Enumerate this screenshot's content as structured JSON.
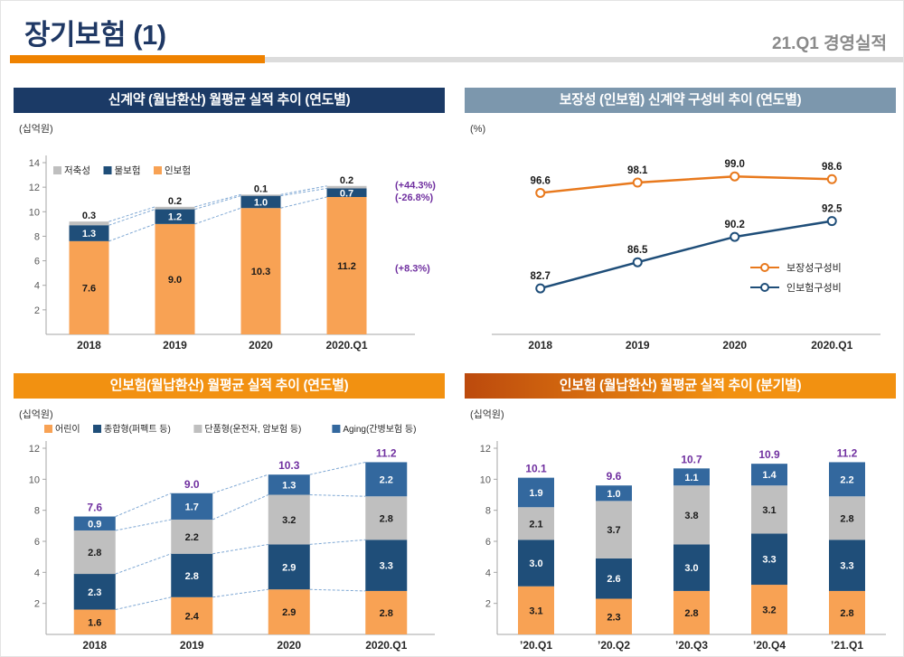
{
  "page": {
    "title": "장기보험 (1)",
    "subtitle": "21.Q1 경영실적"
  },
  "colors": {
    "orange": "#F8A254",
    "navy": "#1F4E79",
    "gray": "#BFBFBF",
    "aging": "#33689E",
    "purple": "#7030A0",
    "line_orange": "#E8791D",
    "line_navy": "#1F4E79"
  },
  "chart_data": [
    {
      "id": "new-contracts-monthly-avg-yearly",
      "type": "bar",
      "stacked": true,
      "title": "신계약 (월납환산) 월평균 실적 추이 (연도별)",
      "unit": "(십억원)",
      "categories": [
        "2018",
        "2019",
        "2020",
        "2020.Q1"
      ],
      "series": [
        {
          "name": "인보험",
          "color": "orange",
          "label_color": "dark",
          "values": [
            7.6,
            9.0,
            10.3,
            11.2
          ]
        },
        {
          "name": "물보험",
          "color": "navy",
          "label_color": "white",
          "values": [
            1.3,
            1.2,
            1.0,
            0.7
          ]
        },
        {
          "name": "저축성",
          "color": "gray",
          "label_color": "dark",
          "values": [
            0.3,
            0.2,
            0.1,
            0.2
          ]
        }
      ],
      "legend": [
        {
          "label": "저축성",
          "color": "gray"
        },
        {
          "label": "물보험",
          "color": "navy"
        },
        {
          "label": "인보험",
          "color": "orange"
        }
      ],
      "ylim": [
        0,
        14
      ],
      "yticks": [
        2,
        4,
        6,
        8,
        10,
        12,
        14
      ],
      "connectors": true,
      "annotations": [
        {
          "text": "(+44.3%)",
          "y": 12.2
        },
        {
          "text": "(-26.8%)",
          "y": 11.2
        },
        {
          "text": "(+8.3%)",
          "y": 5.4
        }
      ]
    },
    {
      "id": "protection-composition-yearly",
      "type": "line",
      "title": "보장성 (인보험) 신계약 구성비 추이 (연도별)",
      "unit": "(%)",
      "categories": [
        "2018",
        "2019",
        "2020",
        "2020.Q1"
      ],
      "series": [
        {
          "name": "보장성구성비",
          "color": "line_orange",
          "values": [
            96.6,
            98.1,
            99.0,
            98.6
          ]
        },
        {
          "name": "인보험구성비",
          "color": "line_navy",
          "values": [
            82.7,
            86.5,
            90.2,
            92.5
          ]
        }
      ],
      "ylim": [
        76,
        101
      ],
      "legend_position": "middle-right"
    },
    {
      "id": "inbohum-monthly-avg-yearly",
      "type": "bar",
      "stacked": true,
      "title": "인보험(월납환산) 월평균 실적 추이 (연도별)",
      "unit": "(십억원)",
      "categories": [
        "2018",
        "2019",
        "2020",
        "2020.Q1"
      ],
      "series": [
        {
          "name": "어린이",
          "color": "orange",
          "label_color": "dark",
          "values": [
            1.6,
            2.4,
            2.9,
            2.8
          ]
        },
        {
          "name": "종합형(퍼펙트 등)",
          "color": "navy",
          "label_color": "white",
          "values": [
            2.3,
            2.8,
            2.9,
            3.3
          ]
        },
        {
          "name": "단품형(운전자, 암보험 등)",
          "color": "gray",
          "label_color": "dark",
          "values": [
            2.8,
            2.2,
            3.2,
            2.8
          ]
        },
        {
          "name": "Aging(간병보험 등)",
          "color": "aging",
          "label_color": "white",
          "values": [
            0.9,
            1.7,
            1.3,
            2.2
          ]
        }
      ],
      "legend": [
        {
          "label": "어린이",
          "color": "orange"
        },
        {
          "label": "종합형(퍼펙트 등)",
          "color": "navy"
        },
        {
          "label": "단품형(운전자, 암보험 등)",
          "color": "gray"
        },
        {
          "label": "Aging(간병보험 등)",
          "color": "aging"
        }
      ],
      "ylim": [
        0,
        12
      ],
      "yticks": [
        2,
        4,
        6,
        8,
        10,
        12
      ],
      "connectors": true,
      "totals": [
        7.6,
        9.0,
        10.3,
        11.2
      ]
    },
    {
      "id": "inbohum-monthly-avg-quarterly",
      "type": "bar",
      "stacked": true,
      "title": "인보험 (월납환산) 월평균 실적 추이 (분기별)",
      "unit": "(십억원)",
      "categories": [
        "’20.Q1",
        "’20.Q2",
        "’20.Q3",
        "’20.Q4",
        "’21.Q1"
      ],
      "series": [
        {
          "name": "어린이",
          "color": "orange",
          "label_color": "dark",
          "values": [
            3.1,
            2.3,
            2.8,
            3.2,
            2.8
          ]
        },
        {
          "name": "종합형(퍼펙트 등)",
          "color": "navy",
          "label_color": "white",
          "values": [
            3.0,
            2.6,
            3.0,
            3.3,
            3.3
          ]
        },
        {
          "name": "단품형(운전자, 암보험 등)",
          "color": "gray",
          "label_color": "dark",
          "values": [
            2.1,
            3.7,
            3.8,
            3.1,
            2.8
          ]
        },
        {
          "name": "Aging(간병보험 등)",
          "color": "aging",
          "label_color": "white",
          "values": [
            1.9,
            1.0,
            1.1,
            1.4,
            2.2
          ]
        }
      ],
      "ylim": [
        0,
        12
      ],
      "yticks": [
        2,
        4,
        6,
        8,
        10,
        12
      ],
      "totals": [
        10.1,
        9.6,
        10.7,
        10.9,
        11.2
      ]
    }
  ]
}
